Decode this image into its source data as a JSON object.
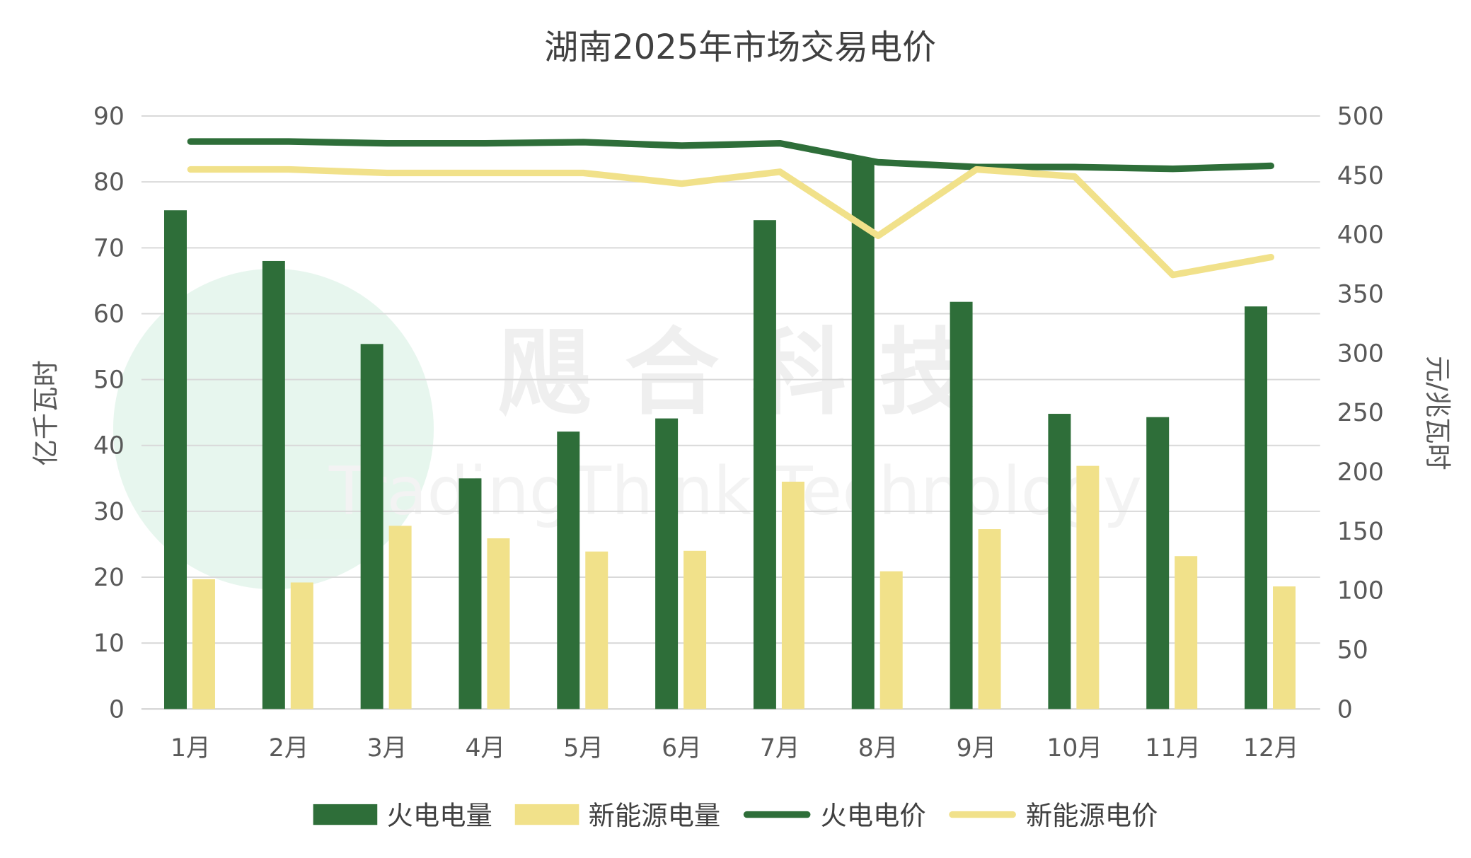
{
  "chart_data": {
    "type": "bar",
    "title": "湖南2025年市场交易电价",
    "categories": [
      "1月",
      "2月",
      "3月",
      "4月",
      "5月",
      "6月",
      "7月",
      "8月",
      "9月",
      "10月",
      "11月",
      "12月"
    ],
    "y_left": {
      "label": "亿千瓦时",
      "range": [
        0,
        90
      ],
      "ticks": [
        0,
        10,
        20,
        30,
        40,
        50,
        60,
        70,
        80,
        90
      ]
    },
    "y_right": {
      "label": "元/兆瓦时",
      "range": [
        0,
        500
      ],
      "ticks": [
        0,
        50,
        100,
        150,
        200,
        250,
        300,
        350,
        400,
        450,
        500
      ]
    },
    "grid": true,
    "legend_position": "bottom",
    "series": [
      {
        "name": "火电电量",
        "kind": "bar",
        "axis": "left",
        "color": "#2e6e39",
        "values": [
          75.7,
          68.0,
          55.4,
          35.0,
          42.1,
          44.1,
          74.2,
          83.4,
          61.8,
          44.8,
          44.3,
          61.1
        ]
      },
      {
        "name": "新能源电量",
        "kind": "bar",
        "axis": "left",
        "color": "#f1e18a",
        "values": [
          19.7,
          19.2,
          27.8,
          25.9,
          23.9,
          24.0,
          34.5,
          20.9,
          27.3,
          36.9,
          23.2,
          18.6
        ]
      },
      {
        "name": "火电电价",
        "kind": "line",
        "axis": "right",
        "color": "#2e6e39",
        "values": [
          478.5,
          478.5,
          477,
          477,
          478,
          475,
          477,
          461,
          457,
          457,
          455.5,
          458
        ]
      },
      {
        "name": "新能源电价",
        "kind": "line",
        "axis": "right",
        "color": "#f1e18a",
        "values": [
          455,
          455,
          452,
          452,
          452,
          443,
          453,
          399,
          455,
          449,
          366,
          381
        ]
      }
    ],
    "watermark": {
      "cn": "飓 合 科 技",
      "en": "TradingThink Technology"
    }
  }
}
